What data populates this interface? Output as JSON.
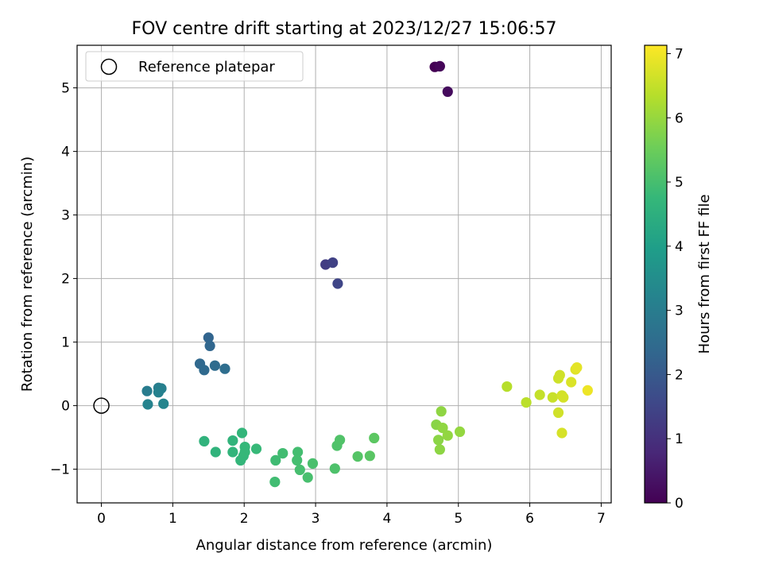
{
  "chart_data": {
    "type": "scatter",
    "title": "FOV centre drift starting at 2023/12/27 15:06:57",
    "xlabel": "Angular distance from reference (arcmin)",
    "ylabel": "Rotation from reference (arcmin)",
    "xlim": [
      -0.34,
      7.14
    ],
    "ylim": [
      -1.53,
      5.67
    ],
    "xticks": [
      0,
      1,
      2,
      3,
      4,
      5,
      6,
      7
    ],
    "yticks": [
      -1,
      0,
      1,
      2,
      3,
      4,
      5
    ],
    "grid": true,
    "legend": {
      "placement": "top-left",
      "entries": [
        "Reference platepar"
      ]
    },
    "reference_point": {
      "x": 0,
      "y": 0,
      "label": "Reference platepar"
    },
    "colorbar": {
      "label": "Hours from first FF file",
      "colormap": "viridis",
      "range": [
        0,
        7.13
      ],
      "ticks": [
        0,
        1,
        2,
        3,
        4,
        5,
        6,
        7
      ]
    },
    "points": [
      {
        "x": 4.67,
        "y": 5.33,
        "c": 0.0
      },
      {
        "x": 4.74,
        "y": 5.34,
        "c": 0.1
      },
      {
        "x": 4.85,
        "y": 4.94,
        "c": 0.2
      },
      {
        "x": 3.14,
        "y": 2.22,
        "c": 1.3
      },
      {
        "x": 3.24,
        "y": 2.25,
        "c": 1.4
      },
      {
        "x": 3.31,
        "y": 1.92,
        "c": 1.5
      },
      {
        "x": 1.5,
        "y": 1.07,
        "c": 2.3
      },
      {
        "x": 1.52,
        "y": 0.94,
        "c": 2.35
      },
      {
        "x": 1.38,
        "y": 0.66,
        "c": 2.4
      },
      {
        "x": 1.44,
        "y": 0.56,
        "c": 2.45
      },
      {
        "x": 1.59,
        "y": 0.63,
        "c": 2.5
      },
      {
        "x": 1.73,
        "y": 0.58,
        "c": 2.55
      },
      {
        "x": 0.64,
        "y": 0.23,
        "c": 3.0
      },
      {
        "x": 0.8,
        "y": 0.28,
        "c": 3.05
      },
      {
        "x": 0.84,
        "y": 0.27,
        "c": 3.1
      },
      {
        "x": 0.8,
        "y": 0.21,
        "c": 3.15
      },
      {
        "x": 0.65,
        "y": 0.02,
        "c": 3.2
      },
      {
        "x": 0.87,
        "y": 0.03,
        "c": 3.25
      },
      {
        "x": 1.44,
        "y": -0.56,
        "c": 4.6
      },
      {
        "x": 1.6,
        "y": -0.73,
        "c": 4.62
      },
      {
        "x": 1.84,
        "y": -0.55,
        "c": 4.64
      },
      {
        "x": 1.84,
        "y": -0.73,
        "c": 4.66
      },
      {
        "x": 1.97,
        "y": -0.43,
        "c": 4.68
      },
      {
        "x": 1.95,
        "y": -0.86,
        "c": 4.7
      },
      {
        "x": 1.99,
        "y": -0.79,
        "c": 4.72
      },
      {
        "x": 2.01,
        "y": -0.65,
        "c": 4.74
      },
      {
        "x": 2.01,
        "y": -0.73,
        "c": 4.76
      },
      {
        "x": 2.17,
        "y": -0.68,
        "c": 4.78
      },
      {
        "x": 2.44,
        "y": -0.86,
        "c": 4.9
      },
      {
        "x": 2.43,
        "y": -1.2,
        "c": 4.92
      },
      {
        "x": 2.54,
        "y": -0.75,
        "c": 4.94
      },
      {
        "x": 2.75,
        "y": -0.73,
        "c": 4.96
      },
      {
        "x": 2.74,
        "y": -0.86,
        "c": 4.98
      },
      {
        "x": 2.78,
        "y": -1.01,
        "c": 5.0
      },
      {
        "x": 2.89,
        "y": -1.13,
        "c": 5.02
      },
      {
        "x": 2.96,
        "y": -0.91,
        "c": 5.04
      },
      {
        "x": 3.27,
        "y": -0.99,
        "c": 5.1
      },
      {
        "x": 3.3,
        "y": -0.63,
        "c": 5.12
      },
      {
        "x": 3.34,
        "y": -0.54,
        "c": 5.14
      },
      {
        "x": 3.59,
        "y": -0.8,
        "c": 5.2
      },
      {
        "x": 3.76,
        "y": -0.79,
        "c": 5.25
      },
      {
        "x": 3.82,
        "y": -0.51,
        "c": 5.3
      },
      {
        "x": 4.69,
        "y": -0.3,
        "c": 5.85
      },
      {
        "x": 4.72,
        "y": -0.54,
        "c": 5.87
      },
      {
        "x": 4.74,
        "y": -0.69,
        "c": 5.89
      },
      {
        "x": 4.76,
        "y": -0.09,
        "c": 5.91
      },
      {
        "x": 4.78,
        "y": -0.35,
        "c": 5.93
      },
      {
        "x": 4.85,
        "y": -0.47,
        "c": 5.95
      },
      {
        "x": 5.02,
        "y": -0.41,
        "c": 5.97
      },
      {
        "x": 5.68,
        "y": 0.3,
        "c": 6.35
      },
      {
        "x": 5.95,
        "y": 0.05,
        "c": 6.4
      },
      {
        "x": 6.14,
        "y": 0.17,
        "c": 6.5
      },
      {
        "x": 6.32,
        "y": 0.13,
        "c": 6.55
      },
      {
        "x": 6.4,
        "y": 0.43,
        "c": 6.6
      },
      {
        "x": 6.42,
        "y": 0.48,
        "c": 6.62
      },
      {
        "x": 6.4,
        "y": -0.11,
        "c": 6.64
      },
      {
        "x": 6.45,
        "y": 0.16,
        "c": 6.66
      },
      {
        "x": 6.47,
        "y": 0.13,
        "c": 6.68
      },
      {
        "x": 6.45,
        "y": -0.43,
        "c": 6.7
      },
      {
        "x": 6.58,
        "y": 0.37,
        "c": 6.75
      },
      {
        "x": 6.64,
        "y": 0.57,
        "c": 6.8
      },
      {
        "x": 6.66,
        "y": 0.6,
        "c": 6.85
      },
      {
        "x": 6.81,
        "y": 0.24,
        "c": 6.95
      }
    ]
  }
}
